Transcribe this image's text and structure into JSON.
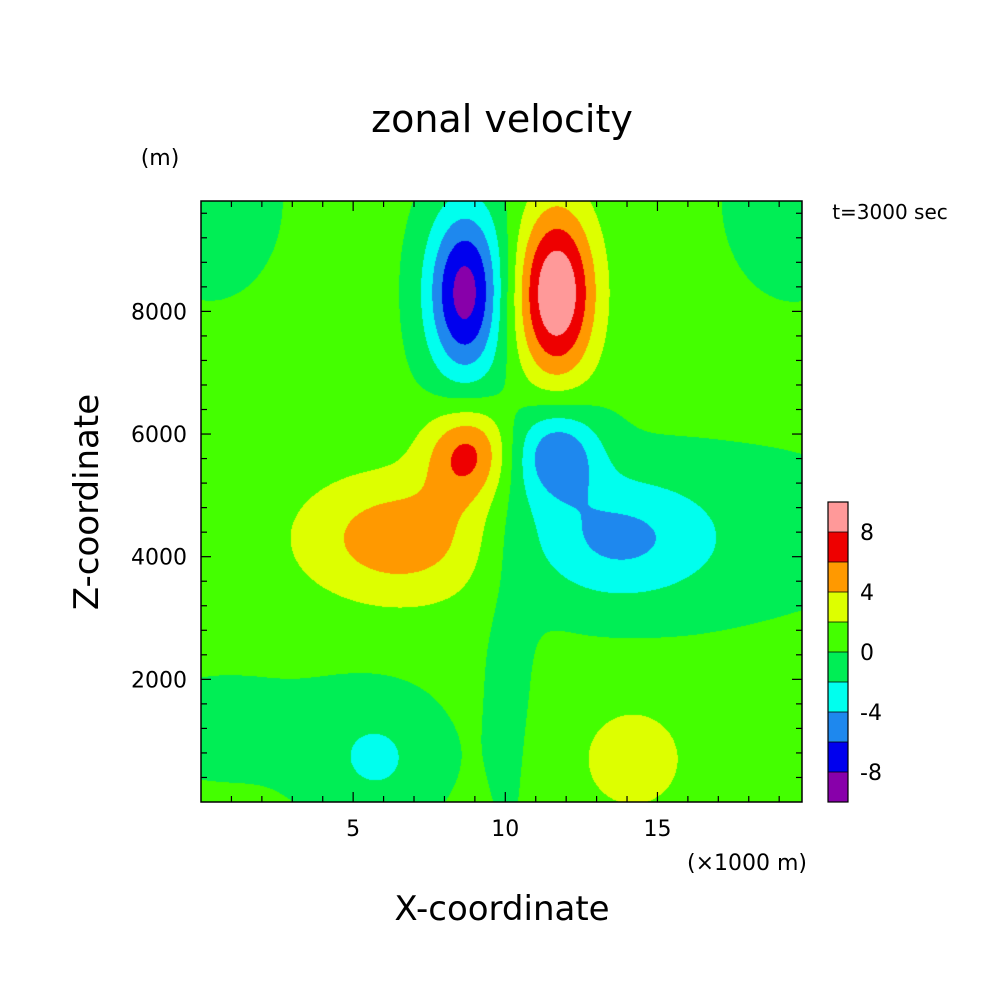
{
  "chart_data": {
    "type": "heatmap",
    "title": "zonal velocity",
    "xlabel": "X-coordinate",
    "ylabel": "Z-coordinate",
    "x_unit": "(×1000 m)",
    "y_unit": "(m)",
    "time_label": "t=3000 sec",
    "xlim": [
      0,
      19.75
    ],
    "ylim": [
      0,
      9800
    ],
    "x_ticks": [
      5,
      10,
      15
    ],
    "x_tick_labels": [
      "5",
      "10",
      "15"
    ],
    "y_ticks": [
      2000,
      4000,
      6000,
      8000
    ],
    "y_tick_labels": [
      "2000",
      "4000",
      "6000",
      "8000"
    ],
    "colorbar": {
      "bounds": [
        -10,
        -8,
        -6,
        -4,
        -2,
        0,
        2,
        4,
        6,
        8,
        10
      ],
      "colors": [
        "#8800aa",
        "#0000ee",
        "#1e88ee",
        "#00ffee",
        "#00ee55",
        "#44ff00",
        "#ddff00",
        "#ff9900",
        "#ee0000",
        "#ff9999"
      ],
      "tick_labels": [
        "8",
        "4",
        "0",
        "-4",
        "-8"
      ],
      "tick_values": [
        8,
        4,
        0,
        -4,
        -8
      ]
    },
    "background_value": 0.5,
    "features": [
      {
        "name": "upper-left negative lobe",
        "x": 8.7,
        "z": 8300,
        "sx": 0.9,
        "sz": 1000,
        "theta": 0.75,
        "amp": -9.5
      },
      {
        "name": "upper-right positive lobe",
        "x": 11.7,
        "z": 8300,
        "sx": 0.9,
        "sz": 1000,
        "theta": -0.75,
        "amp": 9.5
      },
      {
        "name": "mid-left positive lobe",
        "x": 8.8,
        "z": 5700,
        "sx": 1.0,
        "sz": 550,
        "theta": 0.0,
        "amp": 6.0
      },
      {
        "name": "mid-left positive tail",
        "x": 6.6,
        "z": 4300,
        "sx": 2.4,
        "sz": 750,
        "theta": 0.62,
        "amp": 4.8
      },
      {
        "name": "mid-right negative lobe",
        "x": 11.7,
        "z": 5700,
        "sx": 1.0,
        "sz": 550,
        "theta": 0.0,
        "amp": -6.0
      },
      {
        "name": "mid-right negative tail",
        "x": 13.6,
        "z": 4300,
        "sx": 2.4,
        "sz": 750,
        "theta": -0.62,
        "amp": -4.8
      },
      {
        "name": "lower-left negative blob",
        "x": 5.8,
        "z": 700,
        "sx": 1.4,
        "sz": 700,
        "theta": 0.0,
        "amp": -2.6
      },
      {
        "name": "lower-right positive blob",
        "x": 14.2,
        "z": 700,
        "sx": 1.4,
        "sz": 700,
        "theta": 0.0,
        "amp": 2.6
      },
      {
        "name": "upper-left corner",
        "x": 0.3,
        "z": 9800,
        "sx": 2.2,
        "sz": 1500,
        "theta": 0.0,
        "amp": -0.9
      },
      {
        "name": "upper-right corner",
        "x": 19.5,
        "z": 9800,
        "sx": 2.2,
        "sz": 1500,
        "theta": 0.0,
        "amp": -0.9
      },
      {
        "name": "right mid band",
        "x": 19.0,
        "z": 4400,
        "sx": 3.5,
        "sz": 1200,
        "theta": 0.0,
        "amp": -0.8
      },
      {
        "name": "left lower band",
        "x": 1.0,
        "z": 1200,
        "sx": 3.5,
        "sz": 900,
        "theta": 0.0,
        "amp": -0.8
      },
      {
        "name": "centre column",
        "x": 10.1,
        "z": 3000,
        "sx": 0.7,
        "sz": 3200,
        "theta": 0.0,
        "amp": -0.9
      },
      {
        "name": "centre top",
        "x": 10.1,
        "z": 8000,
        "sx": 0.8,
        "sz": 900,
        "theta": 0.0,
        "amp": 0.9
      }
    ]
  }
}
